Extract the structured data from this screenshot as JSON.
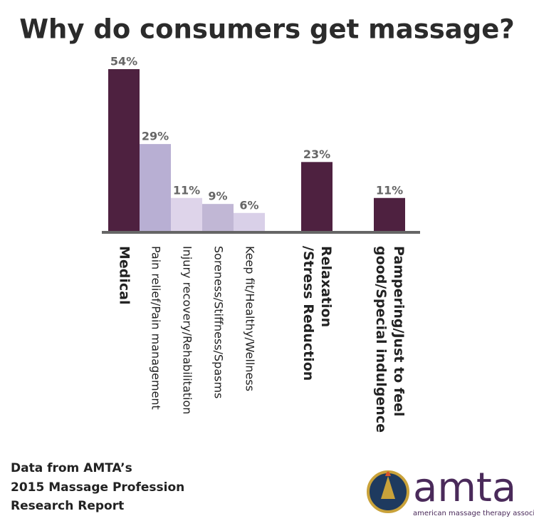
{
  "chart_data": {
    "type": "bar",
    "title": "Why do consumers get massage?",
    "categories": [
      [
        "Medical"
      ],
      [
        "Pain relief/Pain management"
      ],
      [
        "Injury recovery/Rehabilitation"
      ],
      [
        "Soreness/Stiffness/Spasms"
      ],
      [
        "Keep fit/Healthy/Wellness"
      ],
      [
        "Relaxation",
        "/Stress Reduction"
      ],
      [
        "Pampering/Just to feel",
        "good/Special indulgence"
      ]
    ],
    "values": [
      54,
      29,
      11,
      9,
      6,
      23,
      11
    ],
    "value_labels": [
      "54%",
      "29%",
      "11%",
      "9%",
      "6%",
      "23%",
      "11%"
    ],
    "colors": [
      "#4e2140",
      "#b8afd3",
      "#ded4ea",
      "#c1b7d5",
      "#d9d0e8",
      "#4e2140",
      "#4e2140"
    ],
    "source": [
      "Data from AMTA’s",
      "2015 Massage Profession",
      "Research Report"
    ],
    "logo": {
      "name": "amta",
      "tagline": "american massage therapy association"
    }
  }
}
